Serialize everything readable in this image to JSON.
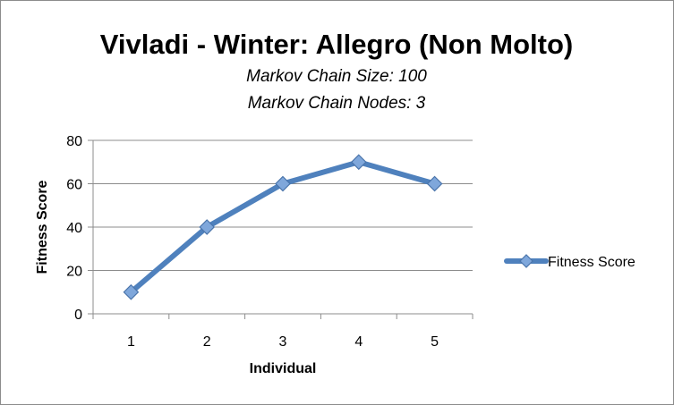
{
  "chart_data": {
    "type": "line",
    "title": "Vivladi - Winter: Allegro (Non Molto)",
    "subtitles": [
      "Markov Chain Size: 100",
      "Markov Chain Nodes: 3"
    ],
    "xlabel": "Individual",
    "ylabel": "Fitness Score",
    "categories": [
      "1",
      "2",
      "3",
      "4",
      "5"
    ],
    "series": [
      {
        "name": "Fitness Score",
        "values": [
          10,
          40,
          60,
          70,
          60
        ]
      }
    ],
    "ylim": [
      0,
      80
    ],
    "yticks": [
      "0",
      "20",
      "40",
      "60",
      "80"
    ],
    "grid": true,
    "legend": "right",
    "colors": {
      "line": "#4F81BD",
      "marker_fill": "#7FA7DB",
      "marker_stroke": "#4A74AA",
      "grid": "#8c8c8c"
    }
  }
}
